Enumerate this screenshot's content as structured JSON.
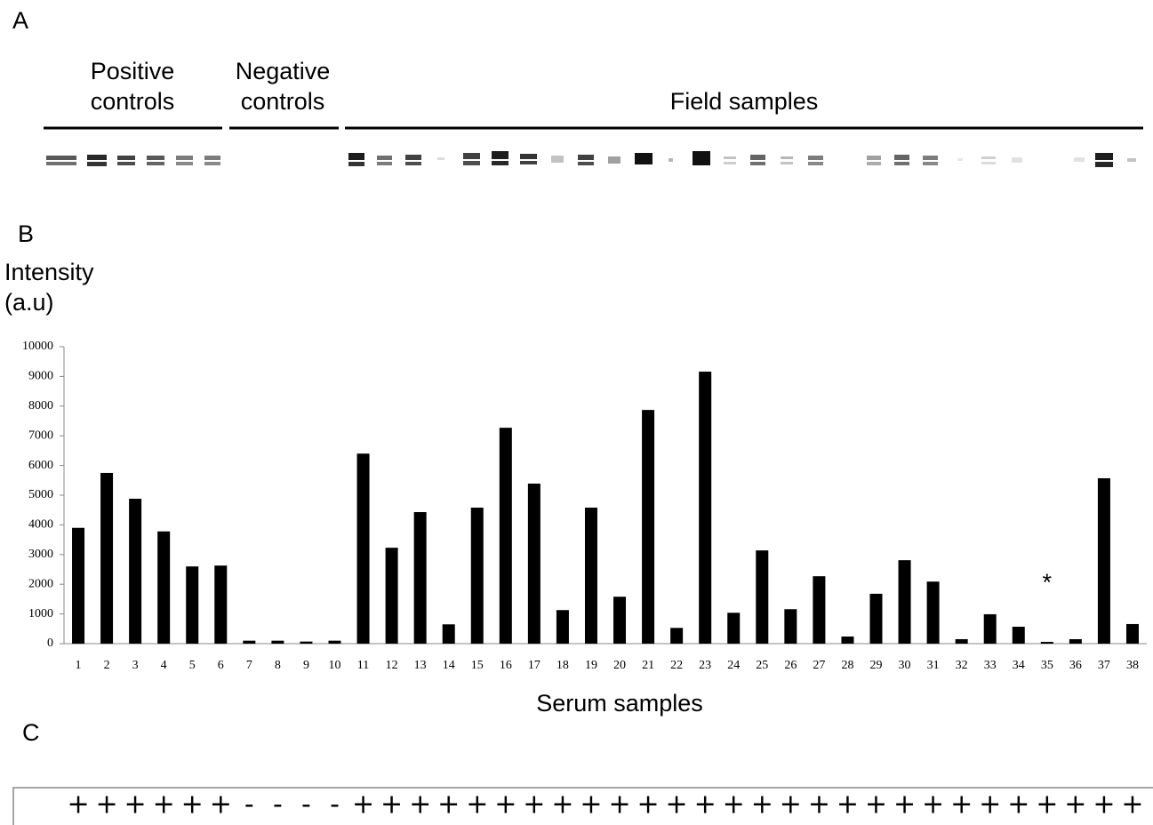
{
  "panel_a": {
    "label": "A",
    "groups": [
      {
        "lines": [
          "Positive",
          "controls"
        ]
      },
      {
        "lines": [
          "Negative",
          "controls"
        ]
      },
      {
        "lines": [
          "Field samples"
        ]
      }
    ]
  },
  "panel_b": {
    "label": "B"
  },
  "chart_data": {
    "type": "bar",
    "ylabel_lines": [
      "Intensity",
      "(a.u)"
    ],
    "xlabel": "Serum samples",
    "categories": [
      "1",
      "2",
      "3",
      "4",
      "5",
      "6",
      "7",
      "8",
      "9",
      "10",
      "11",
      "12",
      "13",
      "14",
      "15",
      "16",
      "17",
      "18",
      "19",
      "20",
      "21",
      "22",
      "23",
      "24",
      "25",
      "26",
      "27",
      "28",
      "29",
      "30",
      "31",
      "32",
      "33",
      "34",
      "35",
      "36",
      "37",
      "38"
    ],
    "values": [
      3900,
      5750,
      4880,
      3780,
      2600,
      2630,
      100,
      100,
      70,
      100,
      6400,
      3230,
      4430,
      650,
      4580,
      7270,
      5390,
      1130,
      4580,
      1580,
      7870,
      530,
      9160,
      1040,
      3140,
      1160,
      2270,
      240,
      1680,
      2810,
      2090,
      150,
      990,
      570,
      60,
      150,
      5570,
      660
    ],
    "color": "#000000",
    "ylim": [
      0,
      10000
    ],
    "yticks": [
      0,
      1000,
      2000,
      3000,
      4000,
      5000,
      6000,
      7000,
      8000,
      9000,
      10000
    ],
    "grid": false,
    "annotations": [
      {
        "text": "*",
        "category": "35"
      }
    ]
  },
  "panel_c": {
    "label": "C",
    "signs": [
      "+",
      "+",
      "+",
      "+",
      "+",
      "+",
      "-",
      "-",
      "-",
      "-",
      "+",
      "+",
      "+",
      "+",
      "+",
      "+",
      "+",
      "+",
      "+",
      "+",
      "+",
      "+",
      "+",
      "+",
      "+",
      "+",
      "+",
      "+",
      "+",
      "+",
      "+",
      "+",
      "+",
      "+",
      "+",
      "+",
      "+",
      "+"
    ]
  }
}
